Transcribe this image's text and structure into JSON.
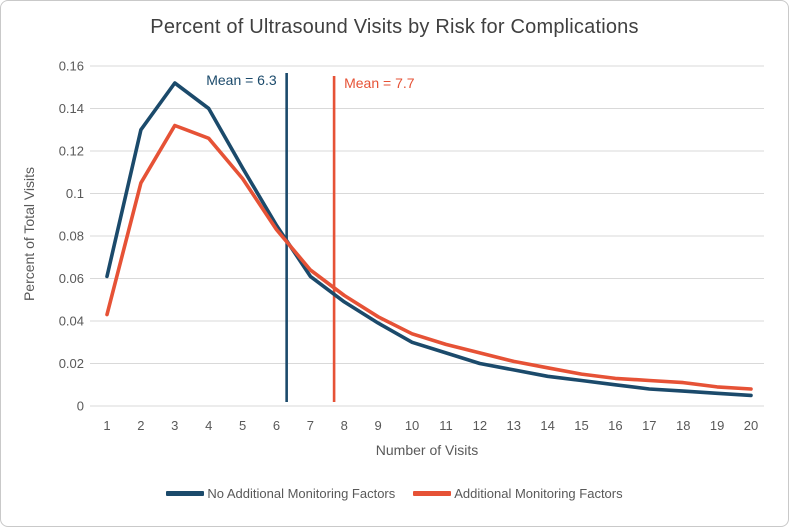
{
  "chart_data": {
    "type": "line",
    "title": "Percent of Ultrasound Visits by Risk for Complications",
    "xlabel": "Number of Visits",
    "ylabel": "Percent of Total Visits",
    "categories": [
      1,
      2,
      3,
      4,
      5,
      6,
      7,
      8,
      9,
      10,
      11,
      12,
      13,
      14,
      15,
      16,
      17,
      18,
      19,
      20
    ],
    "y_ticks": [
      "0",
      "0.02",
      "0.04",
      "0.06",
      "0.08",
      "0.1",
      "0.12",
      "0.14",
      "0.16"
    ],
    "ylim": [
      0,
      0.16
    ],
    "grid": true,
    "legend_position": "bottom",
    "series": [
      {
        "name": "No Additional Monitoring Factors",
        "color": "#1B4A6B",
        "values": [
          0.061,
          0.13,
          0.152,
          0.14,
          0.112,
          0.085,
          0.061,
          0.049,
          0.039,
          0.03,
          0.025,
          0.02,
          0.017,
          0.014,
          0.012,
          0.01,
          0.008,
          0.007,
          0.006,
          0.005
        ],
        "mean": 6.3,
        "mean_label": "Mean = 6.3"
      },
      {
        "name": "Additional Monitoring Factors",
        "color": "#E65236",
        "values": [
          0.043,
          0.105,
          0.132,
          0.126,
          0.107,
          0.083,
          0.064,
          0.052,
          0.042,
          0.034,
          0.029,
          0.025,
          0.021,
          0.018,
          0.015,
          0.013,
          0.012,
          0.011,
          0.009,
          0.008
        ],
        "mean": 7.7,
        "mean_label": "Mean = 7.7"
      }
    ],
    "annotation_colors": {
      "grid": "#D9D9D9",
      "tick_text": "#595959",
      "title_text": "#404040"
    }
  }
}
